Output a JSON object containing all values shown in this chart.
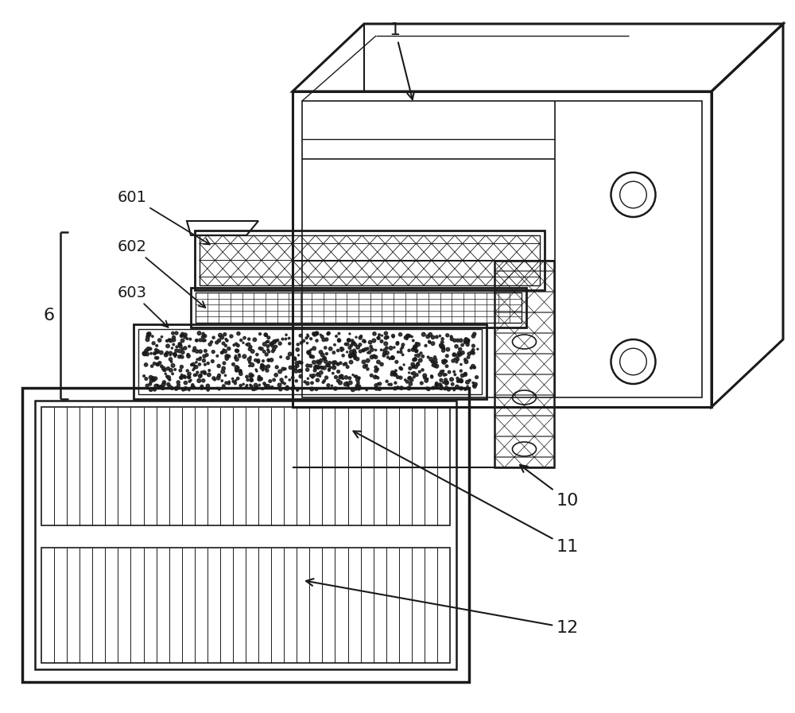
{
  "bg_color": "#ffffff",
  "line_color": "#1a1a1a",
  "fig_width": 10.0,
  "fig_height": 8.97
}
